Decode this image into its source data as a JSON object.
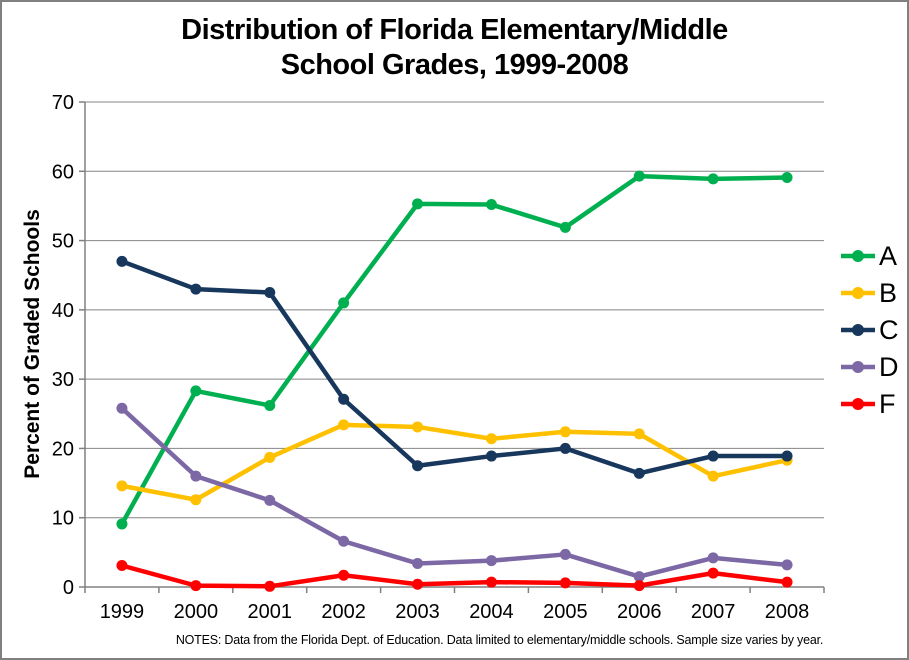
{
  "chart_data": {
    "type": "line",
    "title": "Distribution of Florida Elementary/Middle School Grades, 1999-2008",
    "title_lines": [
      "Distribution of Florida Elementary/Middle",
      "School Grades, 1999-2008"
    ],
    "xlabel": "",
    "ylabel": "Percent of Graded Schools",
    "notes": "NOTES: Data from the Florida Dept. of Education. Data limited to elementary/middle schools. Sample size varies by year.",
    "categories": [
      "1999",
      "2000",
      "2001",
      "2002",
      "2003",
      "2004",
      "2005",
      "2006",
      "2007",
      "2008"
    ],
    "ylim": [
      0,
      70
    ],
    "ytick_step": 10,
    "yticks": [
      0,
      10,
      20,
      30,
      40,
      50,
      60,
      70
    ],
    "grid": "horizontal",
    "legend_position": "right",
    "series": [
      {
        "name": "A",
        "color": "#00B050",
        "values": [
          9.1,
          28.3,
          26.2,
          41.0,
          55.3,
          55.2,
          51.9,
          59.3,
          58.9,
          59.1
        ]
      },
      {
        "name": "B",
        "color": "#FFC000",
        "values": [
          14.6,
          12.6,
          18.7,
          23.4,
          23.1,
          21.4,
          22.4,
          22.1,
          16.0,
          18.3
        ]
      },
      {
        "name": "C",
        "color": "#17375D",
        "values": [
          47.0,
          43.0,
          42.5,
          27.1,
          17.5,
          18.9,
          20.0,
          16.4,
          18.9,
          18.9
        ]
      },
      {
        "name": "D",
        "color": "#7C68A4",
        "values": [
          25.8,
          16.0,
          12.5,
          6.6,
          3.4,
          3.8,
          4.7,
          1.5,
          4.2,
          3.2
        ]
      },
      {
        "name": "F",
        "color": "#FF0000",
        "values": [
          3.1,
          0.2,
          0.1,
          1.7,
          0.4,
          0.7,
          0.6,
          0.2,
          2.0,
          0.7
        ]
      }
    ]
  },
  "colors": {
    "background": "#FFFFFF",
    "frame": "#808080",
    "gridline": "#848484",
    "axis": "#808080",
    "text": "#000000"
  }
}
